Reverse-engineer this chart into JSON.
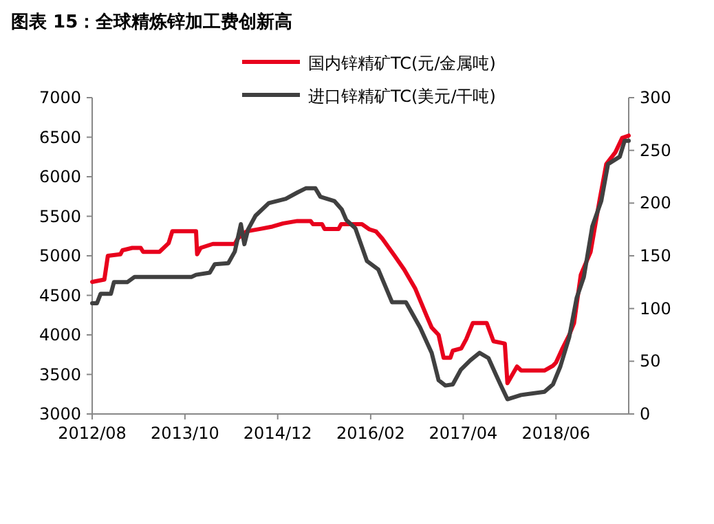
{
  "chart_data": {
    "type": "line",
    "title": "图表 15：全球精炼锌加工费创新高",
    "legend": "top right",
    "xlim": [
      "2012-08",
      "2019-05"
    ],
    "xticks": [
      {
        "value": "2012-08",
        "label": "2012/08"
      },
      {
        "value": "2013-10",
        "label": "2013/10"
      },
      {
        "value": "2014-12",
        "label": "2014/12"
      },
      {
        "value": "2016-02",
        "label": "2016/02"
      },
      {
        "value": "2017-04",
        "label": "2017/04"
      },
      {
        "value": "2018-06",
        "label": "2018/06"
      }
    ],
    "ylim": [
      3000,
      7000
    ],
    "yticks": [
      3000,
      3500,
      4000,
      4500,
      5000,
      5500,
      6000,
      6500,
      7000
    ],
    "y2lim": [
      0,
      300
    ],
    "y2ticks": [
      0,
      50,
      100,
      150,
      200,
      250,
      300
    ],
    "series": [
      {
        "name": "国内锌精矿TC(元/金属吨)",
        "color": "#e8001c",
        "axis": "y",
        "x": [
          "2012-08-01",
          "2012-09-26",
          "2012-10-12",
          "2012-12-09",
          "2012-12-18",
          "2013-02-01",
          "2013-03-12",
          "2013-03-23",
          "2013-06-06",
          "2013-07-18",
          "2013-08-04",
          "2013-11-21",
          "2013-11-26",
          "2013-12-12",
          "2014-02-06",
          "2014-05-18",
          "2014-06-01",
          "2014-07-12",
          "2014-09-12",
          "2014-11-07",
          "2014-12-26",
          "2015-03-01",
          "2015-05-01",
          "2015-05-12",
          "2015-06-23",
          "2015-07-04",
          "2015-09-07",
          "2015-09-18",
          "2015-12-23",
          "2016-01-26",
          "2016-02-26",
          "2016-03-26",
          "2016-05-21",
          "2016-07-04",
          "2016-08-23",
          "2016-10-15",
          "2016-11-07",
          "2016-12-09",
          "2017-01-01",
          "2017-02-01",
          "2017-02-12",
          "2017-03-23",
          "2017-04-15",
          "2017-05-15",
          "2017-07-18",
          "2017-08-18",
          "2017-10-09",
          "2017-10-21",
          "2017-12-04",
          "2017-12-23",
          "2018-04-09",
          "2018-05-18",
          "2018-06-01",
          "2018-07-01",
          "2018-08-01",
          "2018-08-23",
          "2018-09-23",
          "2018-11-07",
          "2018-12-18",
          "2019-01-18",
          "2019-03-01",
          "2019-04-01",
          "2019-05-01"
        ],
        "values": [
          4670,
          4700,
          5000,
          5020,
          5070,
          5100,
          5100,
          5050,
          5050,
          5160,
          5310,
          5310,
          5020,
          5100,
          5150,
          5150,
          5220,
          5310,
          5340,
          5370,
          5410,
          5440,
          5440,
          5400,
          5400,
          5340,
          5340,
          5400,
          5400,
          5335,
          5307,
          5215,
          5000,
          4826,
          4590,
          4240,
          4093,
          4000,
          3710,
          3710,
          3800,
          3830,
          3947,
          4150,
          4150,
          3920,
          3890,
          3390,
          3600,
          3550,
          3550,
          3610,
          3650,
          3830,
          4000,
          4150,
          4760,
          5050,
          5700,
          6160,
          6310,
          6490,
          6520
        ]
      },
      {
        "name": "进口锌精矿TC(美元/干吨)",
        "color": "#404040",
        "axis": "y2",
        "x": [
          "2012-08-01",
          "2012-08-23",
          "2012-09-09",
          "2012-10-26",
          "2012-11-09",
          "2013-01-09",
          "2013-02-12",
          "2013-11-01",
          "2013-11-21",
          "2014-01-23",
          "2014-02-15",
          "2014-04-18",
          "2014-05-18",
          "2014-06-15",
          "2014-07-01",
          "2014-07-18",
          "2014-08-21",
          "2014-10-21",
          "2015-01-07",
          "2015-03-01",
          "2015-04-09",
          "2015-05-23",
          "2015-06-15",
          "2015-08-18",
          "2015-09-21",
          "2015-10-12",
          "2015-11-23",
          "2016-01-15",
          "2016-03-07",
          "2016-05-09",
          "2016-07-12",
          "2016-09-15",
          "2016-11-07",
          "2016-12-09",
          "2017-01-09",
          "2017-02-12",
          "2017-03-21",
          "2017-05-04",
          "2017-06-15",
          "2017-07-26",
          "2017-09-01",
          "2017-09-21",
          "2017-10-21",
          "2017-12-23",
          "2018-04-09",
          "2018-05-18",
          "2018-06-21",
          "2018-08-01",
          "2018-09-04",
          "2018-10-07",
          "2018-11-15",
          "2018-12-26",
          "2019-01-26",
          "2019-03-21",
          "2019-04-12",
          "2019-05-01"
        ],
        "values": [
          105,
          105,
          114,
          114,
          125,
          125,
          130,
          130,
          132,
          134,
          142,
          143,
          154,
          180,
          161,
          175,
          188,
          200,
          204,
          210,
          214,
          214,
          206,
          202,
          194,
          184,
          176,
          145,
          137,
          106,
          106,
          82,
          58,
          32,
          27,
          28,
          42,
          51,
          58,
          53,
          36,
          27,
          14,
          18,
          21,
          28,
          45,
          73,
          110,
          130,
          178,
          202,
          237,
          244,
          259,
          259
        ]
      }
    ]
  }
}
